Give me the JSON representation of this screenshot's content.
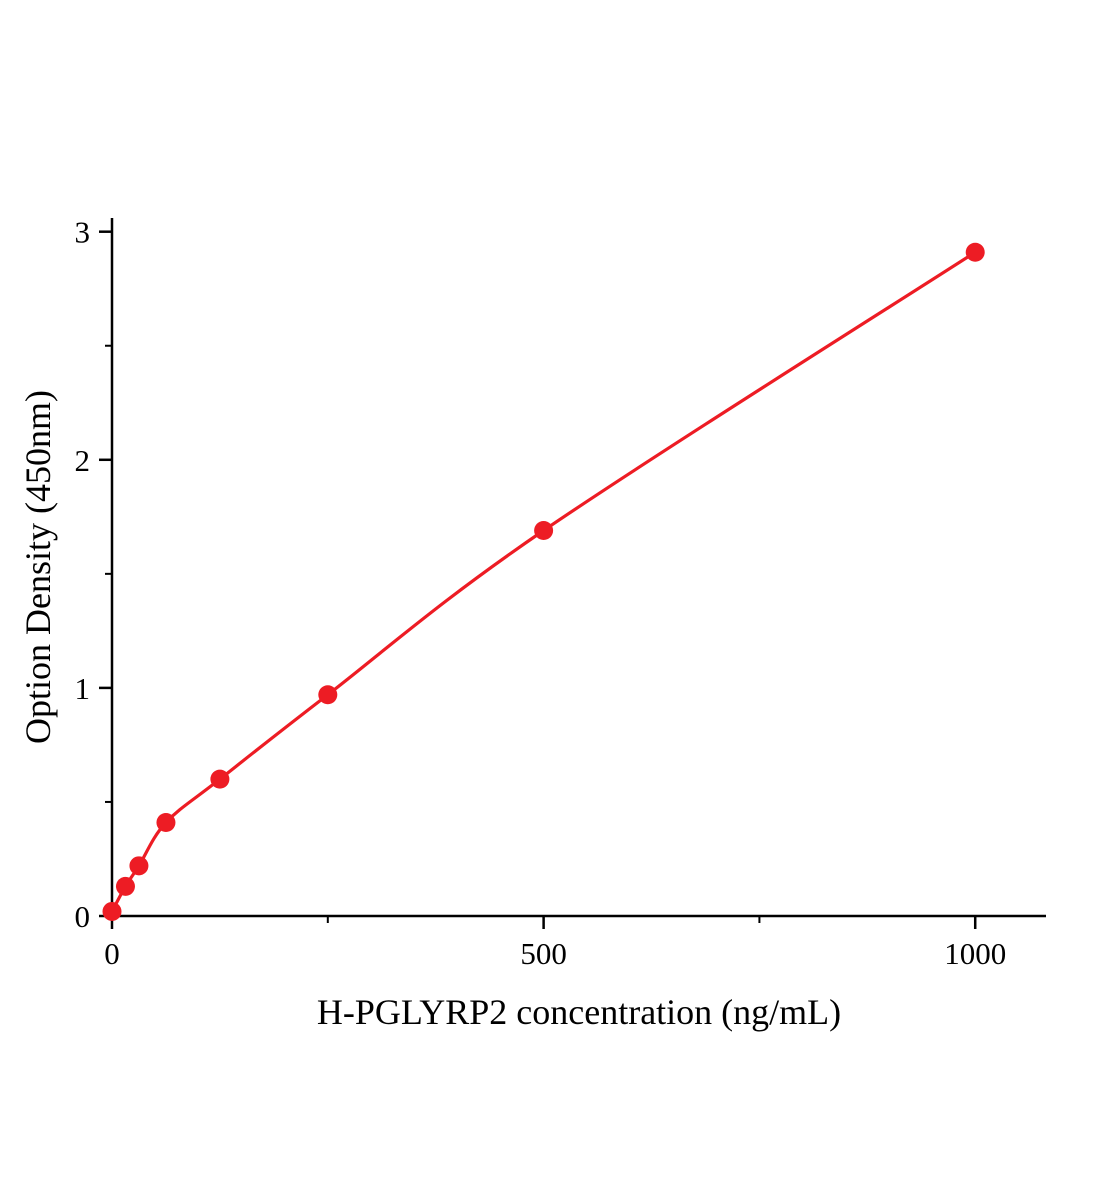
{
  "chart_data": {
    "type": "line",
    "title": "",
    "xlabel": "H-PGLYRP2 concentration (ng/mL)",
    "ylabel": "Option Density (450nm)",
    "x": [
      0,
      15.6,
      31.2,
      62.5,
      125,
      250,
      500,
      1000
    ],
    "y": [
      0.02,
      0.13,
      0.22,
      0.41,
      0.6,
      0.97,
      1.69,
      2.91
    ],
    "xlim": [
      0,
      1082
    ],
    "ylim": [
      0,
      3.06
    ],
    "xticks": [
      0,
      500,
      1000
    ],
    "yticks": [
      0,
      1,
      2,
      3
    ],
    "x_minor_ticks": [
      250,
      750
    ],
    "y_minor_ticks": [
      0.5,
      1.5,
      2.5
    ],
    "grid": false,
    "legend": null,
    "line_color": "#ed1c24",
    "marker_color": "#ed1c24",
    "axis_color": "#000000",
    "marker_radius": 9.5,
    "line_width": 3.2
  }
}
